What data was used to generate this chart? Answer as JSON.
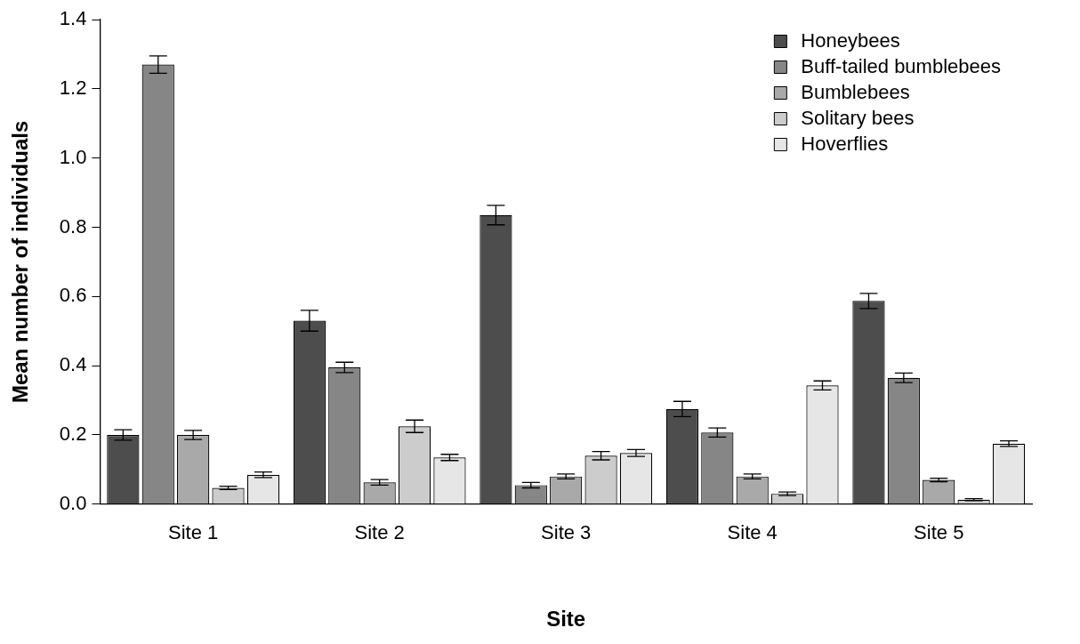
{
  "chart_data": {
    "type": "bar",
    "xlabel": "Site",
    "ylabel": "Mean number of individuals",
    "categories": [
      "Site 1",
      "Site 2",
      "Site 3",
      "Site 4",
      "Site 5"
    ],
    "series": [
      {
        "name": "Honeybees",
        "color": "#4d4d4d",
        "values": [
          0.2,
          0.53,
          0.835,
          0.275,
          0.587
        ],
        "errors": [
          0.015,
          0.03,
          0.028,
          0.022,
          0.022
        ]
      },
      {
        "name": "Buff-tailed bumblebees",
        "color": "#868686",
        "values": [
          1.27,
          0.395,
          0.055,
          0.207,
          0.365
        ],
        "errors": [
          0.025,
          0.015,
          0.008,
          0.013,
          0.014
        ]
      },
      {
        "name": "Bumblebees",
        "color": "#a9a9a9",
        "values": [
          0.2,
          0.063,
          0.08,
          0.08,
          0.07
        ],
        "errors": [
          0.013,
          0.008,
          0.007,
          0.007,
          0.005
        ]
      },
      {
        "name": "Solitary bees",
        "color": "#cccccc",
        "values": [
          0.047,
          0.225,
          0.14,
          0.03,
          0.013
        ],
        "errors": [
          0.005,
          0.018,
          0.012,
          0.005,
          0.003
        ]
      },
      {
        "name": "Hoverflies",
        "color": "#e6e6e6",
        "values": [
          0.085,
          0.135,
          0.148,
          0.343,
          0.175
        ],
        "errors": [
          0.008,
          0.009,
          0.01,
          0.013,
          0.008
        ]
      }
    ],
    "ylim": [
      0,
      1.4
    ],
    "yticks": [
      {
        "value": 0,
        "label": "0.0"
      },
      {
        "value": 0.2,
        "label": "0.2"
      },
      {
        "value": 0.4,
        "label": "0.4"
      },
      {
        "value": 0.6,
        "label": "0.6"
      },
      {
        "value": 0.8,
        "label": "0.8"
      },
      {
        "value": 1.0,
        "label": "1.0"
      },
      {
        "value": 1.2,
        "label": "1.2"
      },
      {
        "value": 1.4,
        "label": "1.4"
      }
    ],
    "grid": false,
    "legend": "top right"
  }
}
